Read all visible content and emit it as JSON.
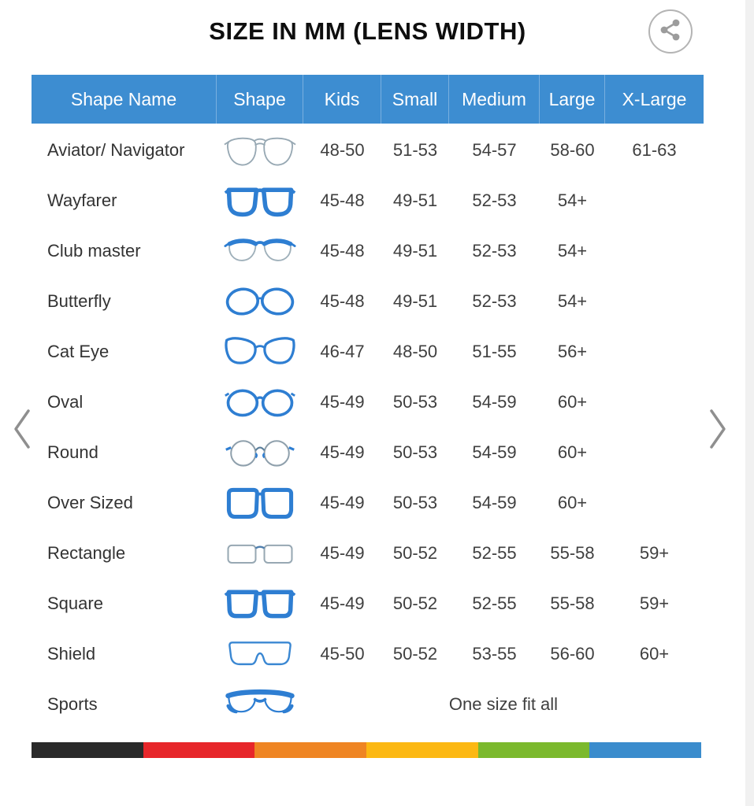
{
  "title": "SIZE IN MM (LENS WIDTH)",
  "colors": {
    "header_bg": "#3d8dd1",
    "header_divider": "#79afdf",
    "header_text": "#ffffff",
    "frame_blue": "#2e7ed2",
    "thin_gray": "#97a8b3",
    "chevron_gray": "#8f8f8f",
    "share_gray": "#9c9c9c"
  },
  "table": {
    "headers": [
      "Shape Name",
      "Shape",
      "Kids",
      "Small",
      "Medium",
      "Large",
      "X-Large"
    ],
    "rows": [
      {
        "name": "Aviator/ Navigator",
        "icon": "aviator",
        "kids": "48-50",
        "small": "51-53",
        "medium": "54-57",
        "large": "58-60",
        "xlarge": "61-63"
      },
      {
        "name": "Wayfarer",
        "icon": "wayfarer",
        "kids": "45-48",
        "small": "49-51",
        "medium": "52-53",
        "large": "54+",
        "xlarge": ""
      },
      {
        "name": "Club master",
        "icon": "clubmaster",
        "kids": "45-48",
        "small": "49-51",
        "medium": "52-53",
        "large": "54+",
        "xlarge": ""
      },
      {
        "name": "Butterfly",
        "icon": "butterfly",
        "kids": "45-48",
        "small": "49-51",
        "medium": "52-53",
        "large": "54+",
        "xlarge": ""
      },
      {
        "name": "Cat Eye",
        "icon": "cateye",
        "kids": "46-47",
        "small": "48-50",
        "medium": "51-55",
        "large": "56+",
        "xlarge": ""
      },
      {
        "name": "Oval",
        "icon": "oval",
        "kids": "45-49",
        "small": "50-53",
        "medium": "54-59",
        "large": "60+",
        "xlarge": ""
      },
      {
        "name": "Round",
        "icon": "round",
        "kids": "45-49",
        "small": "50-53",
        "medium": "54-59",
        "large": "60+",
        "xlarge": ""
      },
      {
        "name": "Over Sized",
        "icon": "oversized",
        "kids": "45-49",
        "small": "50-53",
        "medium": "54-59",
        "large": "60+",
        "xlarge": ""
      },
      {
        "name": "Rectangle",
        "icon": "rectangle",
        "kids": "45-49",
        "small": "50-52",
        "medium": "52-55",
        "large": "55-58",
        "xlarge": "59+"
      },
      {
        "name": "Square",
        "icon": "square",
        "kids": "45-49",
        "small": "50-52",
        "medium": "52-55",
        "large": "55-58",
        "xlarge": "59+"
      },
      {
        "name": "Shield",
        "icon": "shield",
        "kids": "45-50",
        "small": "50-52",
        "medium": "53-55",
        "large": "56-60",
        "xlarge": "60+"
      },
      {
        "name": "Sports",
        "icon": "sports",
        "span_text": "One size fit all"
      }
    ]
  },
  "footer_bar": [
    "#2a2a2a",
    "#e7262a",
    "#ef8523",
    "#fcb813",
    "#7bb92d",
    "#3a8ccd"
  ]
}
